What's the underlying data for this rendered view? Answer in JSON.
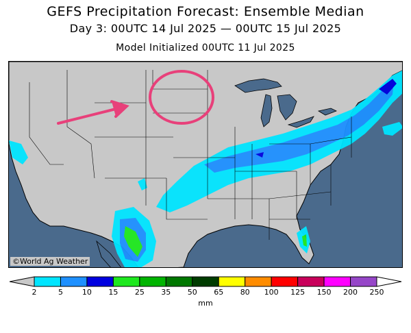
{
  "header": {
    "title": "GEFS Precipitation Forecast: Ensemble Median",
    "period": "Day 3: 00UTC 14 Jul 2025 — 00UTC 15 Jul 2025",
    "init": "Model Initialized 00UTC 11 Jul 2025"
  },
  "map": {
    "credit": "©World Ag Weather",
    "colors": {
      "water": "#4a6a8c",
      "land": "#c8c8c8",
      "borders": "#000000",
      "annotation": "#e8407a"
    }
  },
  "legend": {
    "unit": "mm",
    "ticks": [
      "2",
      "5",
      "10",
      "15",
      "25",
      "35",
      "50",
      "65",
      "80",
      "100",
      "125",
      "150",
      "200",
      "250"
    ],
    "colors": [
      "#00e5ff",
      "#1e90ff",
      "#0000e0",
      "#1ee81e",
      "#00b400",
      "#007800",
      "#003c00",
      "#ffff00",
      "#ff8c00",
      "#ff0000",
      "#c8005a",
      "#ff00ff",
      "#9646c8"
    ],
    "under_color": "#c8c8c8",
    "over_color": "#ffffff"
  }
}
